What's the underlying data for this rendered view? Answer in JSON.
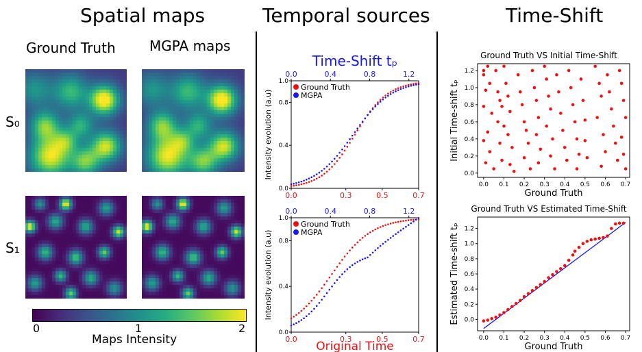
{
  "headers": {
    "spatial": "Spatial maps",
    "temporal": "Temporal sources",
    "timeshift": "Time-Shift"
  },
  "spatial": {
    "col_gt": "Ground Truth",
    "col_mgpa": "MGPA maps",
    "row0": "S₀",
    "row1": "S₁",
    "colorbar": {
      "label": "Maps Intensity",
      "ticks": [
        "0",
        "1",
        "2"
      ]
    }
  },
  "colors": {
    "gt": "#ee1111",
    "mgpa": "#2222dd",
    "red": "#ee1111",
    "blue": "#1a1aee"
  },
  "chart_data": [
    {
      "id": "temporal-top",
      "type": "scatter",
      "title": "Time-Shift tₚ",
      "ylabel": "Intensity evolution (a.u)",
      "xlabel": "",
      "xlim": [
        0,
        0.7
      ],
      "ylim": [
        0,
        1
      ],
      "xticks_bottom": [
        "0.0",
        "0.3",
        "0.5",
        "0.7"
      ],
      "xticks_bottom_vals": [
        0,
        0.3,
        0.5,
        0.7
      ],
      "xticks_top": [
        "0.0",
        "0.4",
        "0.8",
        "1.2"
      ],
      "xticks_top_vals": [
        0,
        0.4,
        0.8,
        1.2
      ],
      "top_xlim": [
        0,
        1.3
      ],
      "yticks": [
        "0.0",
        "0.4",
        "0.8",
        "1.0"
      ],
      "yticks_vals": [
        0,
        0.4,
        0.8,
        1.0
      ],
      "legend_position": "top-left",
      "series": [
        {
          "name": "Ground Truth",
          "curve": {
            "kind": "sigmoid",
            "center": 0.35,
            "steep": 11
          }
        },
        {
          "name": "MGPA",
          "curve": {
            "kind": "sigmoid",
            "center": 0.34,
            "steep": 9.5
          }
        }
      ]
    },
    {
      "id": "temporal-bottom",
      "type": "scatter",
      "title": "",
      "ylabel": "Intensity evolution (a.u)",
      "xlabel": "Original Time",
      "xlim": [
        0,
        0.7
      ],
      "ylim": [
        0,
        1
      ],
      "xticks_bottom": [
        "0.0",
        "0.3",
        "0.5",
        "0.7"
      ],
      "xticks_bottom_vals": [
        0,
        0.3,
        0.5,
        0.7
      ],
      "xticks_top": [
        "0.0",
        "0.4",
        "0.8",
        "1.2"
      ],
      "xticks_top_vals": [
        0,
        0.4,
        0.8,
        1.2
      ],
      "top_xlim": [
        0,
        1.3
      ],
      "yticks": [
        "0.0",
        "0.4",
        "0.8",
        "1.0"
      ],
      "yticks_vals": [
        0,
        0.4,
        0.8,
        1.0
      ],
      "legend_position": "top-left",
      "series": [
        {
          "name": "Ground Truth",
          "curve": {
            "kind": "sigmoid",
            "center": 0.22,
            "steep": 9
          }
        },
        {
          "name": "MGPA",
          "curve": {
            "kind": "twostep",
            "center": 0.2,
            "steep": 12
          }
        }
      ]
    },
    {
      "id": "ts-initial",
      "type": "scatter",
      "title": "Ground Truth VS Initial Time-Shift",
      "xlabel": "Ground Truth",
      "ylabel": "Initial Time-shift tₚ",
      "xlim": [
        -0.03,
        0.72
      ],
      "ylim": [
        -0.05,
        1.28
      ],
      "xticks": [
        "0.0",
        "0.1",
        "0.2",
        "0.3",
        "0.4",
        "0.5",
        "0.6",
        "0.7"
      ],
      "xticks_vals": [
        0,
        0.1,
        0.2,
        0.3,
        0.4,
        0.5,
        0.6,
        0.7
      ],
      "yticks": [
        "0.0",
        "0.2",
        "0.4",
        "0.6",
        "0.8",
        "1.0",
        "1.2"
      ],
      "yticks_vals": [
        0,
        0.2,
        0.4,
        0.6,
        0.8,
        1.0,
        1.2
      ],
      "series": [
        {
          "name": "",
          "points": [
            [
              0.0,
              1.2
            ],
            [
              0.02,
              1.25
            ],
            [
              0.0,
              1.15
            ],
            [
              0.03,
              1.05
            ],
            [
              0.01,
              0.97
            ],
            [
              0.0,
              0.78
            ],
            [
              0.04,
              0.7
            ],
            [
              0.02,
              0.48
            ],
            [
              0.0,
              0.38
            ],
            [
              0.03,
              0.25
            ],
            [
              0.01,
              0.12
            ],
            [
              0.05,
              0.05
            ],
            [
              0.06,
              1.2
            ],
            [
              0.07,
              0.95
            ],
            [
              0.08,
              0.85
            ],
            [
              0.09,
              0.78
            ],
            [
              0.07,
              0.6
            ],
            [
              0.1,
              0.55
            ],
            [
              0.08,
              0.35
            ],
            [
              0.09,
              0.15
            ],
            [
              0.1,
              1.25
            ],
            [
              0.11,
              1.05
            ],
            [
              0.12,
              0.9
            ],
            [
              0.13,
              0.72
            ],
            [
              0.12,
              0.45
            ],
            [
              0.14,
              0.3
            ],
            [
              0.13,
              0.1
            ],
            [
              0.15,
              0.02
            ],
            [
              0.17,
              1.15
            ],
            [
              0.18,
              0.95
            ],
            [
              0.19,
              0.8
            ],
            [
              0.2,
              0.6
            ],
            [
              0.21,
              0.5
            ],
            [
              0.22,
              0.35
            ],
            [
              0.2,
              0.18
            ],
            [
              0.23,
              0.05
            ],
            [
              0.24,
              1.2
            ],
            [
              0.25,
              1.0
            ],
            [
              0.26,
              0.85
            ],
            [
              0.27,
              0.65
            ],
            [
              0.26,
              0.45
            ],
            [
              0.28,
              0.28
            ],
            [
              0.27,
              0.12
            ],
            [
              0.3,
              1.25
            ],
            [
              0.31,
              1.1
            ],
            [
              0.32,
              0.9
            ],
            [
              0.33,
              0.75
            ],
            [
              0.31,
              0.55
            ],
            [
              0.34,
              0.4
            ],
            [
              0.33,
              0.2
            ],
            [
              0.35,
              0.05
            ],
            [
              0.36,
              1.15
            ],
            [
              0.37,
              0.95
            ],
            [
              0.38,
              0.7
            ],
            [
              0.39,
              0.5
            ],
            [
              0.4,
              0.3
            ],
            [
              0.41,
              0.15
            ],
            [
              0.42,
              1.2
            ],
            [
              0.43,
              1.0
            ],
            [
              0.44,
              0.8
            ],
            [
              0.45,
              0.6
            ],
            [
              0.46,
              0.4
            ],
            [
              0.47,
              0.22
            ],
            [
              0.46,
              0.05
            ],
            [
              0.48,
              1.1
            ],
            [
              0.49,
              0.85
            ],
            [
              0.5,
              0.62
            ],
            [
              0.5,
              0.38
            ],
            [
              0.51,
              0.18
            ],
            [
              0.55,
              1.25
            ],
            [
              0.57,
              1.05
            ],
            [
              0.58,
              0.9
            ],
            [
              0.56,
              0.65
            ],
            [
              0.59,
              0.45
            ],
            [
              0.6,
              0.25
            ],
            [
              0.58,
              0.08
            ],
            [
              0.61,
              1.15
            ],
            [
              0.62,
              0.95
            ],
            [
              0.63,
              0.75
            ],
            [
              0.64,
              0.55
            ],
            [
              0.65,
              0.35
            ],
            [
              0.66,
              0.15
            ],
            [
              0.67,
              1.2
            ],
            [
              0.68,
              1.05
            ],
            [
              0.69,
              0.85
            ],
            [
              0.7,
              0.65
            ],
            [
              0.68,
              0.42
            ],
            [
              0.69,
              0.22
            ],
            [
              0.7,
              0.05
            ]
          ]
        }
      ]
    },
    {
      "id": "ts-estimated",
      "type": "scatter",
      "title": "Ground Truth VS Estimated Time-Shift",
      "xlabel": "Ground Truth",
      "ylabel": "Estimated Time-shift tₚ",
      "xlim": [
        -0.03,
        0.72
      ],
      "ylim": [
        -0.15,
        1.35
      ],
      "xticks": [
        "0.0",
        "0.1",
        "0.2",
        "0.3",
        "0.4",
        "0.5",
        "0.6",
        "0.7"
      ],
      "xticks_vals": [
        0,
        0.1,
        0.2,
        0.3,
        0.4,
        0.5,
        0.6,
        0.7
      ],
      "yticks": [
        "0.0",
        "0.2",
        "0.4",
        "0.6",
        "0.8",
        "1.0",
        "1.2"
      ],
      "yticks_vals": [
        0,
        0.2,
        0.4,
        0.6,
        0.8,
        1.0,
        1.2
      ],
      "reference_line": {
        "from": [
          0.0,
          -0.12
        ],
        "to": [
          0.7,
          1.28
        ]
      },
      "series": [
        {
          "name": "",
          "points": [
            [
              0.0,
              -0.02
            ],
            [
              0.02,
              -0.01
            ],
            [
              0.04,
              0.01
            ],
            [
              0.06,
              0.03
            ],
            [
              0.08,
              0.06
            ],
            [
              0.1,
              0.09
            ],
            [
              0.12,
              0.13
            ],
            [
              0.14,
              0.17
            ],
            [
              0.16,
              0.21
            ],
            [
              0.18,
              0.25
            ],
            [
              0.2,
              0.3
            ],
            [
              0.22,
              0.34
            ],
            [
              0.24,
              0.38
            ],
            [
              0.26,
              0.42
            ],
            [
              0.28,
              0.46
            ],
            [
              0.3,
              0.5
            ],
            [
              0.32,
              0.55
            ],
            [
              0.34,
              0.59
            ],
            [
              0.36,
              0.63
            ],
            [
              0.38,
              0.67
            ],
            [
              0.4,
              0.71
            ],
            [
              0.42,
              0.78
            ],
            [
              0.44,
              0.85
            ],
            [
              0.45,
              0.9
            ],
            [
              0.47,
              0.95
            ],
            [
              0.49,
              1.0
            ],
            [
              0.51,
              1.03
            ],
            [
              0.53,
              1.05
            ],
            [
              0.55,
              1.06
            ],
            [
              0.57,
              1.07
            ],
            [
              0.59,
              1.08
            ],
            [
              0.61,
              1.1
            ],
            [
              0.63,
              1.2
            ],
            [
              0.65,
              1.26
            ],
            [
              0.67,
              1.27
            ],
            [
              0.69,
              1.27
            ]
          ]
        }
      ]
    }
  ]
}
